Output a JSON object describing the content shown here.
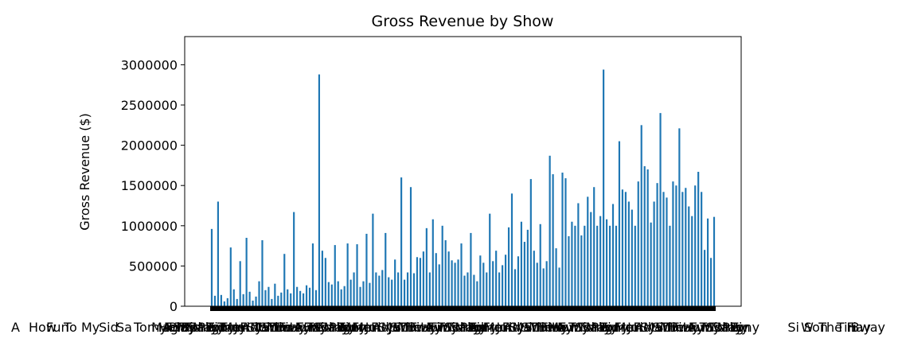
{
  "chart_data": {
    "type": "bar",
    "title": "Gross Revenue by Show",
    "xlabel": "",
    "ylabel": "Gross Revenue ($)",
    "ylim": [
      0,
      3350000
    ],
    "yticks": [
      0,
      500000,
      1000000,
      1500000,
      2000000,
      2500000,
      3000000
    ],
    "ytick_labels": [
      "0",
      "500000",
      "1000000",
      "1500000",
      "2000000",
      "2500000",
      "3000000"
    ],
    "xtick_labels_visible": [
      "A",
      "How",
      "Fun",
      "To",
      "My",
      "Sid",
      "Sa",
      "Tomy",
      "Mag",
      "Play",
      "Bin",
      "Tony",
      "Tomm",
      "Fre",
      "Men",
      "Ju",
      "Fi",
      "Ad",
      "Sy",
      "Ma",
      "Si",
      "W",
      "Son",
      "The",
      "Fi",
      "Tinay",
      "Bway"
    ],
    "bar_color": "#1f77b4",
    "grid": false,
    "legend": "none",
    "series": [
      {
        "values": [
          960000,
          130000,
          1300000,
          140000,
          60000,
          100000,
          730000,
          210000,
          90000,
          560000,
          150000,
          850000,
          180000,
          70000,
          120000,
          310000,
          820000,
          200000,
          240000,
          90000,
          280000,
          130000,
          170000,
          650000,
          210000,
          160000,
          1170000,
          240000,
          190000,
          160000,
          260000,
          230000,
          780000,
          200000,
          2880000,
          690000,
          600000,
          300000,
          270000,
          760000,
          310000,
          210000,
          250000,
          780000,
          330000,
          420000,
          770000,
          240000,
          310000,
          900000,
          290000,
          1150000,
          420000,
          380000,
          450000,
          910000,
          360000,
          330000,
          580000,
          420000,
          1600000,
          330000,
          420000,
          1480000,
          410000,
          610000,
          600000,
          680000,
          970000,
          420000,
          1080000,
          660000,
          520000,
          1000000,
          820000,
          680000,
          570000,
          540000,
          580000,
          780000,
          380000,
          420000,
          910000,
          390000,
          310000,
          630000,
          540000,
          420000,
          1150000,
          560000,
          690000,
          420000,
          510000,
          640000,
          980000,
          1400000,
          460000,
          620000,
          1050000,
          800000,
          950000,
          1580000,
          690000,
          540000,
          1020000,
          470000,
          560000,
          1870000,
          1640000,
          720000,
          480000,
          1660000,
          1590000,
          870000,
          1050000,
          1000000,
          1280000,
          880000,
          1000000,
          1360000,
          1170000,
          1480000,
          1000000,
          1120000,
          2940000,
          1080000,
          1000000,
          1270000,
          1000000,
          2050000,
          1450000,
          1420000,
          1300000,
          1200000,
          1000000,
          1550000,
          2250000,
          1740000,
          1700000,
          1040000,
          1300000,
          1530000,
          2400000,
          1420000,
          1350000,
          1000000,
          1550000,
          1500000,
          2210000,
          1420000,
          1470000,
          1240000,
          1120000,
          1500000,
          1670000,
          1420000,
          700000,
          1090000,
          600000,
          1110000
        ]
      }
    ]
  }
}
